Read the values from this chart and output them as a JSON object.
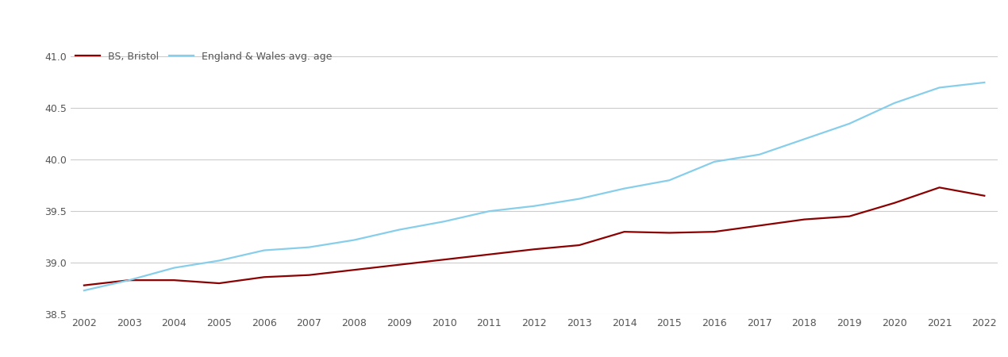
{
  "years": [
    2002,
    2003,
    2004,
    2005,
    2006,
    2007,
    2008,
    2009,
    2010,
    2011,
    2012,
    2013,
    2014,
    2015,
    2016,
    2017,
    2018,
    2019,
    2020,
    2021,
    2022
  ],
  "bristol": [
    38.78,
    38.83,
    38.83,
    38.8,
    38.86,
    38.88,
    38.93,
    38.98,
    39.03,
    39.08,
    39.13,
    39.17,
    39.3,
    39.29,
    39.3,
    39.36,
    39.42,
    39.45,
    39.58,
    39.73,
    39.65
  ],
  "england_wales": [
    38.73,
    38.83,
    38.95,
    39.02,
    39.12,
    39.15,
    39.22,
    39.32,
    39.4,
    39.5,
    39.55,
    39.62,
    39.72,
    39.8,
    39.98,
    40.05,
    40.2,
    40.35,
    40.55,
    40.7,
    40.75
  ],
  "bristol_color": "#8B0000",
  "ew_color": "#87CEEB",
  "bg_color": "#ffffff",
  "grid_color": "#cccccc",
  "ylim": [
    38.5,
    41.1
  ],
  "yticks": [
    38.5,
    39.0,
    39.5,
    40.0,
    40.5,
    41.0
  ],
  "legend_bristol": "BS, Bristol",
  "legend_ew": "England & Wales avg. age",
  "linewidth": 1.6,
  "tick_fontsize": 9,
  "tick_color": "#555555"
}
